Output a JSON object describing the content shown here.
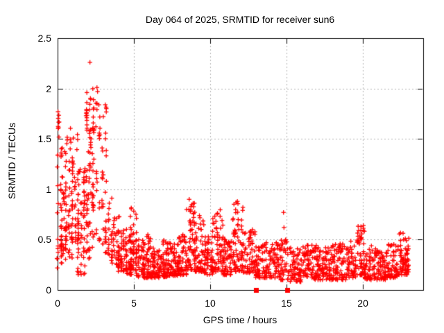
{
  "chart_data": {
    "type": "scatter",
    "title": "Day 064 of 2025, SRMTID for receiver sun6",
    "xlabel": "GPS time / hours",
    "ylabel": "SRMTID / TECUs",
    "xlim": [
      0,
      23.95
    ],
    "ylim": [
      0,
      2.5
    ],
    "xticks": [
      0,
      5,
      10,
      15,
      20
    ],
    "yticks": [
      0,
      0.5,
      1,
      1.5,
      2,
      2.5
    ],
    "grid": "dashed",
    "legend_position": "none",
    "marker": "plus",
    "marker_color": "#ff0000",
    "grid_color": "#b3b3b3",
    "axis_color": "#000000",
    "background_color": "#ffffff",
    "description": "Dense scatter of SRMTID values vs GPS time; high variable values 0-4 h peaking 2.26 TECUs near 2.1 h, settling to a 0.1-0.5 band with bumps near 5, 8.7, 10.5, 11.8, 19.8 and 22.7 h",
    "density_bins": [
      [
        0.0,
        0.25,
        0.2,
        1.45,
        30,
        1.2,
        2
      ],
      [
        0.02,
        0.12,
        1.5,
        1.78,
        8,
        1.0,
        1
      ],
      [
        0.25,
        0.55,
        0.25,
        1.05,
        35,
        1.3,
        3
      ],
      [
        0.3,
        0.5,
        1.1,
        1.45,
        6,
        1.0,
        2
      ],
      [
        0.55,
        0.95,
        0.3,
        1.35,
        40,
        1.3,
        3
      ],
      [
        0.6,
        0.85,
        1.4,
        1.75,
        7,
        1.0,
        2
      ],
      [
        0.95,
        1.35,
        0.35,
        1.2,
        40,
        1.2,
        3
      ],
      [
        1.0,
        1.3,
        1.25,
        1.55,
        8,
        1.0,
        2
      ],
      [
        1.35,
        1.75,
        0.15,
        1.0,
        40,
        1.3,
        3
      ],
      [
        1.45,
        1.7,
        1.0,
        1.35,
        5,
        1.0,
        2
      ],
      [
        1.75,
        2.05,
        0.3,
        1.3,
        30,
        1.2,
        3
      ],
      [
        1.9,
        2.35,
        1.55,
        2.0,
        30,
        1.0,
        3
      ],
      [
        2.0,
        2.3,
        0.9,
        1.55,
        18,
        1.0,
        3
      ],
      [
        1.95,
        2.3,
        0.35,
        0.9,
        15,
        1.0,
        3
      ],
      [
        2.35,
        2.75,
        0.5,
        1.9,
        30,
        1.5,
        3
      ],
      [
        2.75,
        3.15,
        0.45,
        1.85,
        30,
        1.6,
        3
      ],
      [
        3.15,
        3.55,
        0.35,
        1.15,
        30,
        1.5,
        3
      ],
      [
        3.55,
        4.0,
        0.25,
        0.8,
        35,
        1.5,
        4
      ],
      [
        4.0,
        4.5,
        0.18,
        0.62,
        45,
        1.5,
        4
      ],
      [
        4.5,
        4.85,
        0.15,
        0.55,
        40,
        1.4,
        4
      ],
      [
        4.8,
        5.15,
        0.18,
        0.82,
        45,
        1.6,
        3
      ],
      [
        5.15,
        5.6,
        0.13,
        0.5,
        40,
        1.6,
        4
      ],
      [
        5.6,
        6.1,
        0.12,
        0.55,
        55,
        1.8,
        0
      ],
      [
        6.1,
        6.8,
        0.12,
        0.42,
        65,
        1.6,
        0
      ],
      [
        6.8,
        7.3,
        0.13,
        0.5,
        55,
        1.7,
        0
      ],
      [
        7.3,
        7.9,
        0.14,
        0.48,
        60,
        1.6,
        0
      ],
      [
        7.9,
        8.45,
        0.15,
        0.55,
        60,
        1.6,
        0
      ],
      [
        8.45,
        9.0,
        0.2,
        0.88,
        60,
        1.8,
        0
      ],
      [
        9.0,
        9.6,
        0.18,
        0.75,
        55,
        1.8,
        0
      ],
      [
        9.6,
        10.15,
        0.15,
        0.56,
        55,
        1.6,
        0
      ],
      [
        10.15,
        10.85,
        0.18,
        0.8,
        65,
        1.8,
        0
      ],
      [
        10.85,
        11.4,
        0.15,
        0.52,
        55,
        1.6,
        0
      ],
      [
        11.4,
        12.15,
        0.18,
        0.88,
        70,
        1.8,
        0
      ],
      [
        12.15,
        12.95,
        0.17,
        0.6,
        60,
        1.7,
        0
      ],
      [
        12.95,
        13.6,
        0.12,
        0.45,
        55,
        1.5,
        0
      ],
      [
        13.6,
        14.45,
        0.12,
        0.48,
        60,
        1.6,
        0
      ],
      [
        14.45,
        15.1,
        0.1,
        0.5,
        50,
        1.6,
        0
      ],
      [
        15.1,
        16.0,
        0.08,
        0.42,
        70,
        1.5,
        0
      ],
      [
        16.0,
        17.0,
        0.1,
        0.45,
        80,
        1.6,
        0
      ],
      [
        17.0,
        18.0,
        0.1,
        0.43,
        80,
        1.6,
        0
      ],
      [
        18.0,
        19.0,
        0.1,
        0.47,
        80,
        1.6,
        0
      ],
      [
        19.0,
        19.55,
        0.12,
        0.5,
        45,
        1.6,
        0
      ],
      [
        19.55,
        20.1,
        0.15,
        0.66,
        55,
        1.7,
        0
      ],
      [
        20.1,
        20.9,
        0.1,
        0.45,
        60,
        1.6,
        0
      ],
      [
        20.9,
        21.6,
        0.1,
        0.4,
        60,
        1.5,
        0
      ],
      [
        21.6,
        22.3,
        0.12,
        0.46,
        60,
        1.5,
        0
      ],
      [
        22.3,
        23.05,
        0.15,
        0.57,
        70,
        1.5,
        0
      ]
    ],
    "outlier_points": [
      [
        2.12,
        2.26
      ],
      [
        2.58,
        2.01
      ],
      [
        2.62,
        1.97
      ],
      [
        0.03,
        1.77
      ],
      [
        8.62,
        0.9
      ],
      [
        11.78,
        0.88
      ],
      [
        14.8,
        0.77
      ],
      [
        14.83,
        0.62
      ]
    ],
    "square_markers": [
      [
        13.0,
        0.0
      ],
      [
        15.05,
        0.0
      ]
    ]
  }
}
